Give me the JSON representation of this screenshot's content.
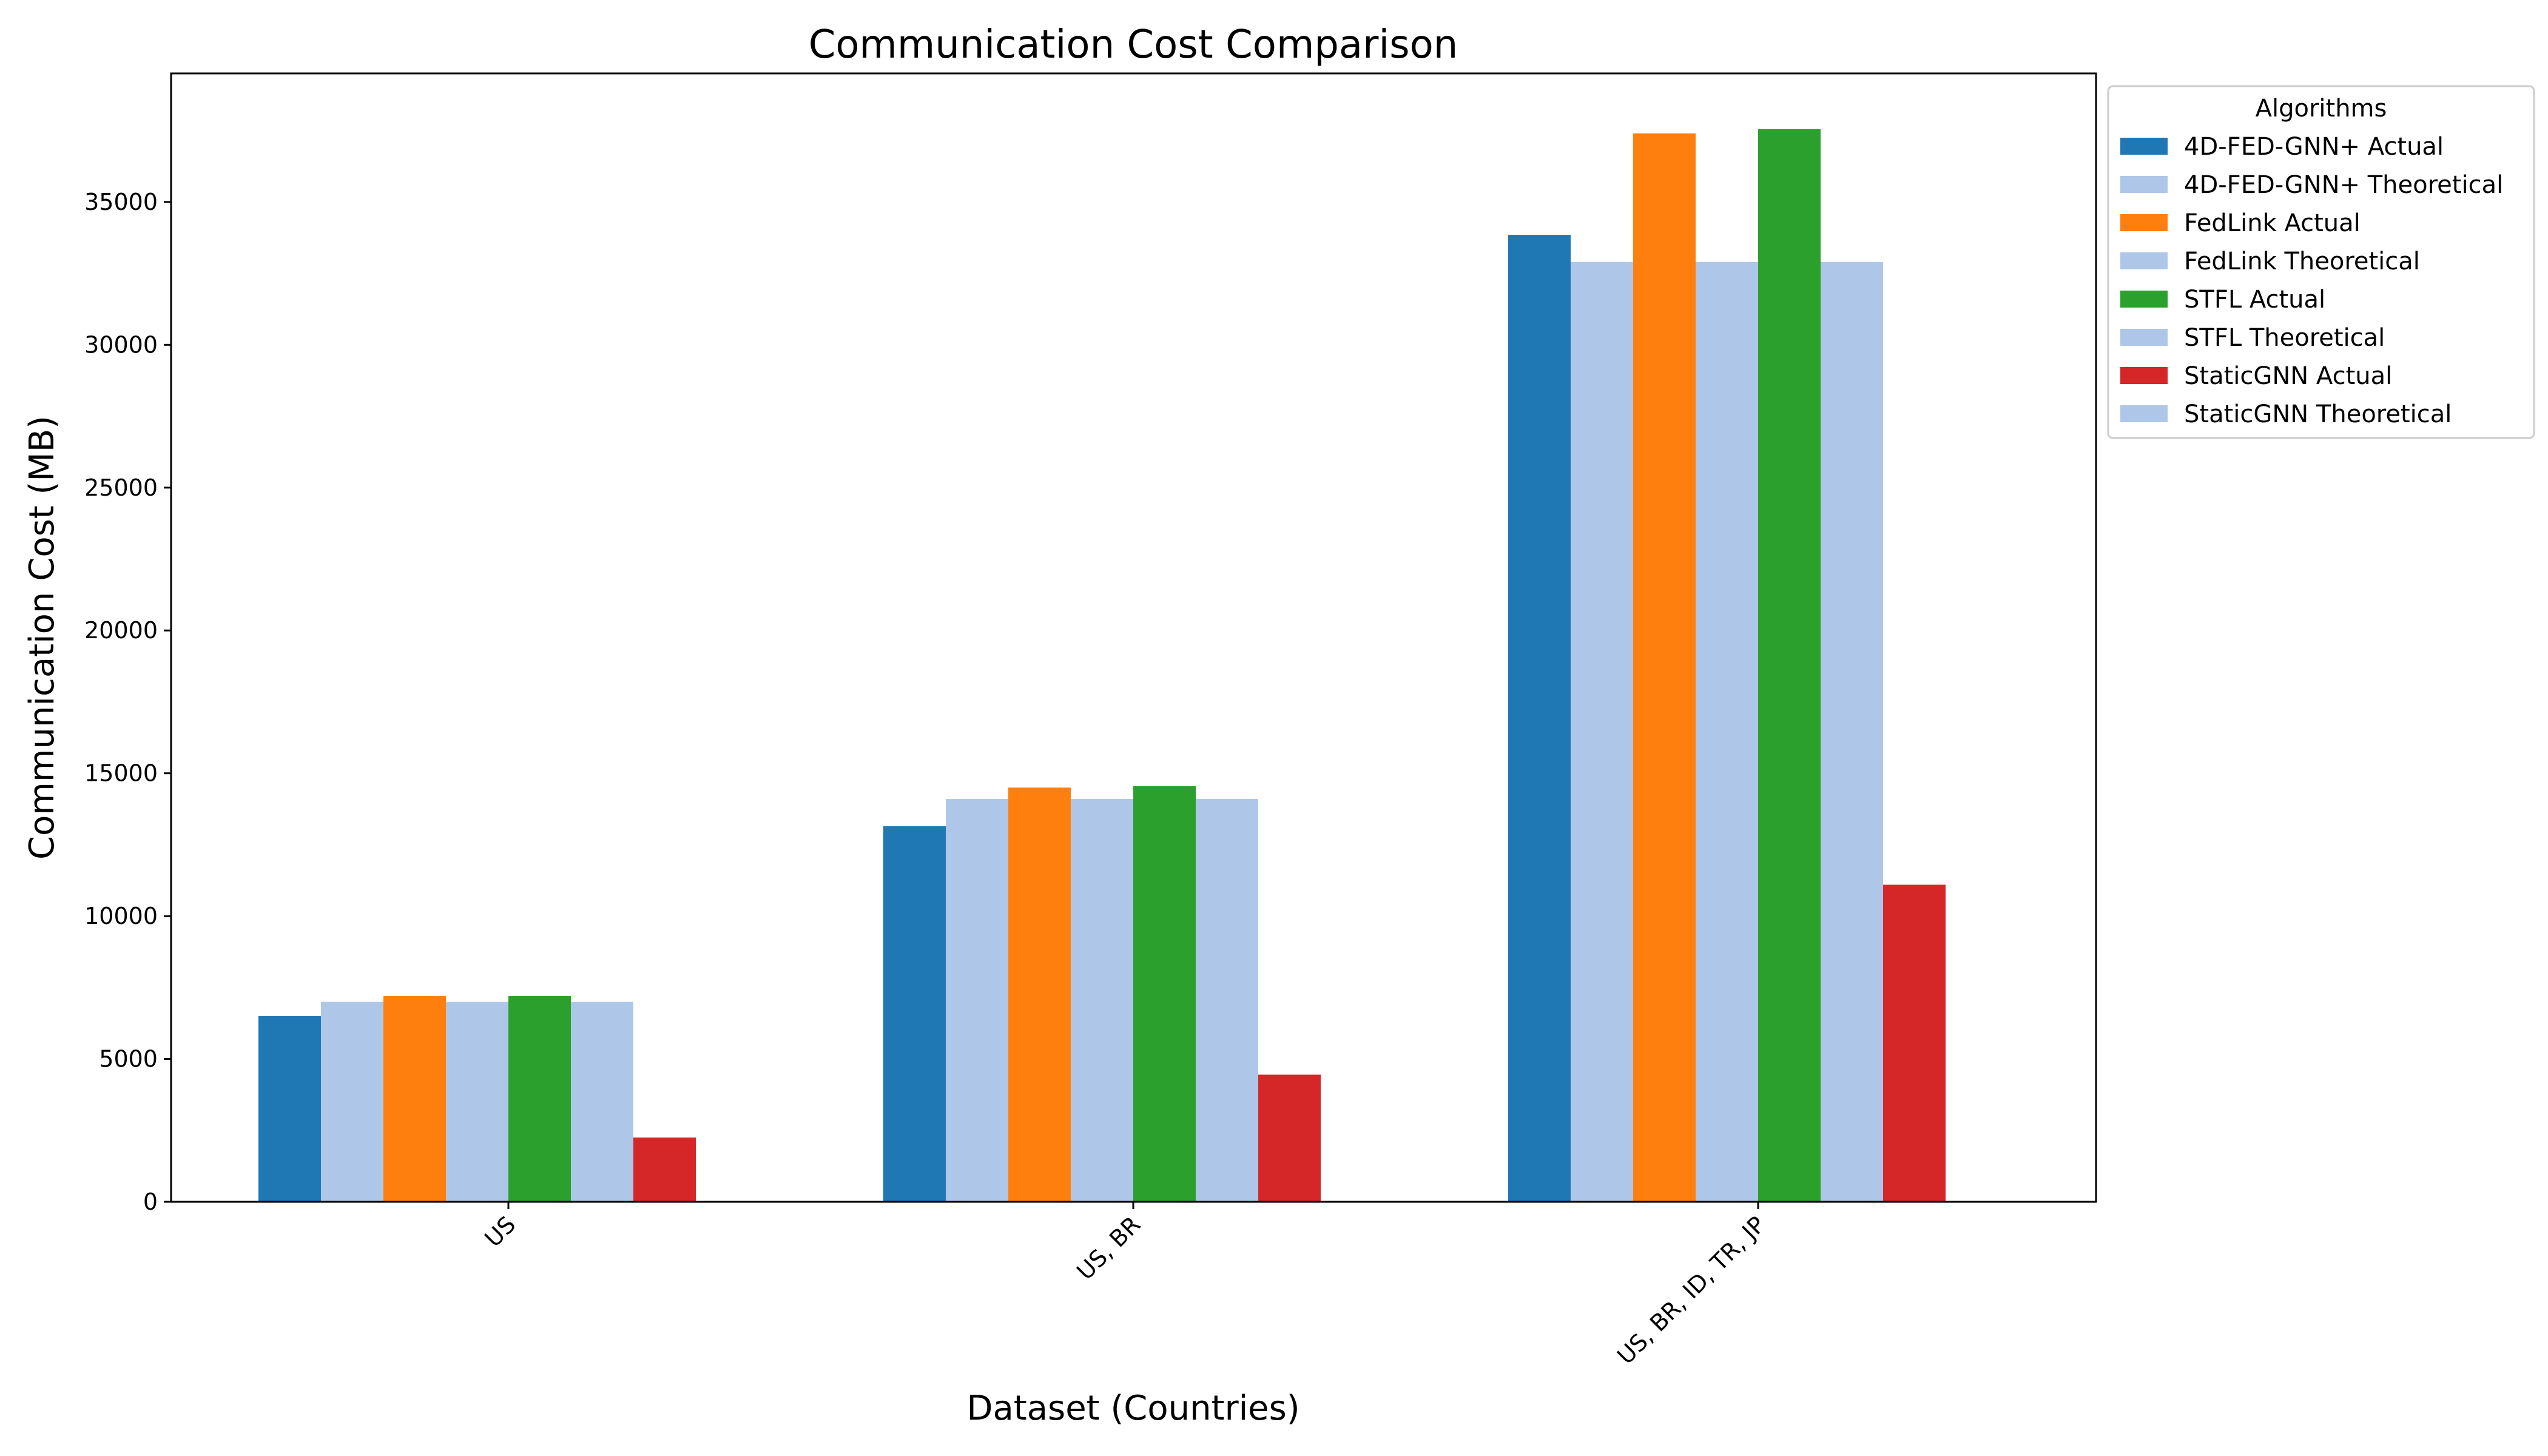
{
  "chart_data": {
    "type": "bar",
    "title": "Communication Cost Comparison",
    "xlabel": "Dataset (Countries)",
    "ylabel": "Communication Cost (MB)",
    "categories": [
      "US",
      "US, BR",
      "US, BR, ID, TR, JP"
    ],
    "ylim": [
      0,
      39500
    ],
    "yticks": [
      0,
      5000,
      10000,
      15000,
      20000,
      25000,
      30000,
      35000
    ],
    "legend": {
      "title": "Algorithms",
      "placement": "outside-top-right"
    },
    "series": [
      {
        "name": "4D-FED-GNN+ Actual",
        "color": "#1f77b4",
        "values": [
          6500,
          13150,
          33850
        ]
      },
      {
        "name": "4D-FED-GNN+ Theoretical",
        "color": "#aec7e8",
        "values": [
          7000,
          14100,
          32900
        ]
      },
      {
        "name": "FedLink Actual",
        "color": "#ff7f0e",
        "values": [
          7200,
          14500,
          37400
        ]
      },
      {
        "name": "FedLink Theoretical",
        "color": "#aec7e8",
        "values": [
          7000,
          14100,
          32900
        ]
      },
      {
        "name": "STFL Actual",
        "color": "#2ca02c",
        "values": [
          7200,
          14550,
          37550
        ]
      },
      {
        "name": "STFL Theoretical",
        "color": "#aec7e8",
        "values": [
          7000,
          14100,
          32900
        ]
      },
      {
        "name": "StaticGNN Actual",
        "color": "#d62728",
        "values": [
          2250,
          4450,
          11100
        ]
      },
      {
        "name": "StaticGNN Theoretical",
        "color": "#aec7e8",
        "values": [
          0,
          0,
          0
        ]
      }
    ]
  }
}
